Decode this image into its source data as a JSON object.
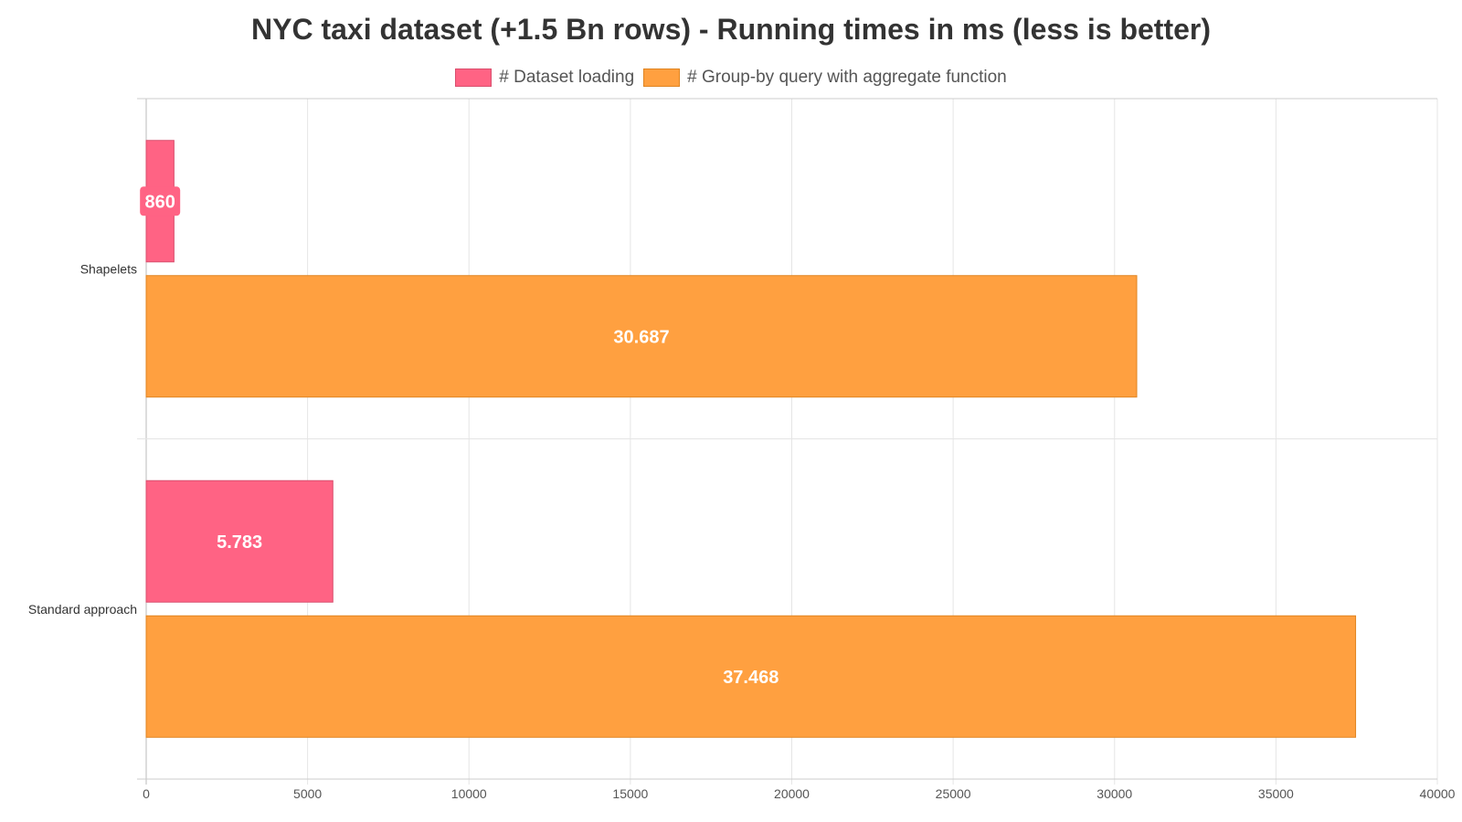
{
  "chart_data": {
    "type": "bar",
    "orientation": "horizontal",
    "title": "NYC taxi dataset (+1.5 Bn rows) - Running times in ms (less is better)",
    "categories": [
      "Shapelets",
      "Standard approach"
    ],
    "series": [
      {
        "name": "# Dataset loading",
        "values": [
          860,
          5783
        ],
        "value_labels": [
          "860",
          "5.783"
        ],
        "color": "#ff6384",
        "border_color": "#d94f6e"
      },
      {
        "name": "# Group-by query with aggregate function",
        "values": [
          30687,
          37468
        ],
        "value_labels": [
          "30.687",
          "37.468"
        ],
        "color": "#ffa040",
        "border_color": "#e08420"
      }
    ],
    "xlim": [
      0,
      40000
    ],
    "x_ticks": [
      "0",
      "5000",
      "10000",
      "15000",
      "20000",
      "25000",
      "30000",
      "35000",
      "40000"
    ],
    "grid": true,
    "legend_position": "top"
  }
}
